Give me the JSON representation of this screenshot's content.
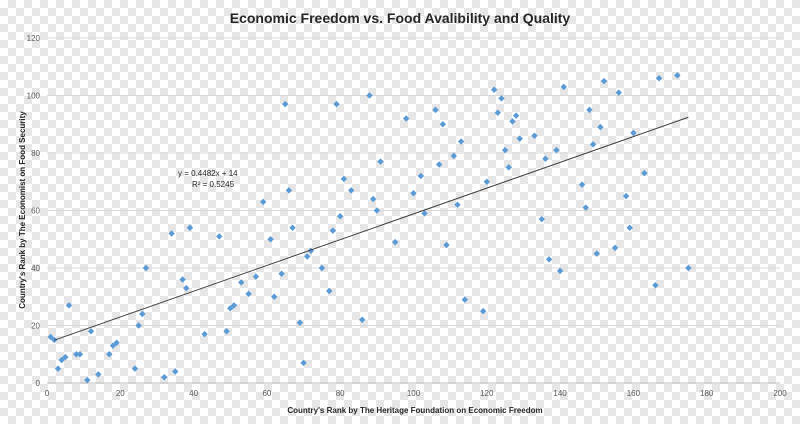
{
  "chart_data": {
    "type": "scatter",
    "title": "Economic Freedom vs. Food Avalibility and Quality",
    "xlabel": "Country's Rank by The Heritage Foundation on Economic Freedom",
    "ylabel": "Country's Rank by The Economist on Food Security",
    "xlim": [
      0,
      200
    ],
    "ylim": [
      0,
      120
    ],
    "x_ticks": [
      0,
      20,
      40,
      60,
      80,
      100,
      120,
      140,
      160,
      180,
      200
    ],
    "y_ticks": [
      0,
      20,
      40,
      60,
      80,
      100,
      120
    ],
    "grid": true,
    "point_color": "#5b9bd5",
    "trendline": {
      "slope": 0.4482,
      "intercept": 14,
      "x_range": [
        2,
        175
      ],
      "equation": "y = 0.4482x + 14",
      "r_squared": "R² = 0.5245",
      "color": "#404040"
    },
    "points": [
      [
        1,
        16
      ],
      [
        2,
        15
      ],
      [
        3,
        5
      ],
      [
        4,
        8
      ],
      [
        5,
        9
      ],
      [
        6,
        27
      ],
      [
        8,
        10
      ],
      [
        9,
        10
      ],
      [
        11,
        1
      ],
      [
        12,
        18
      ],
      [
        14,
        3
      ],
      [
        17,
        10
      ],
      [
        18,
        13
      ],
      [
        19,
        14
      ],
      [
        24,
        5
      ],
      [
        25,
        20
      ],
      [
        26,
        24
      ],
      [
        27,
        40
      ],
      [
        32,
        2
      ],
      [
        34,
        52
      ],
      [
        35,
        4
      ],
      [
        37,
        36
      ],
      [
        38,
        33
      ],
      [
        39,
        54
      ],
      [
        43,
        17
      ],
      [
        47,
        51
      ],
      [
        49,
        18
      ],
      [
        50,
        26
      ],
      [
        51,
        27
      ],
      [
        53,
        35
      ],
      [
        55,
        31
      ],
      [
        57,
        37
      ],
      [
        59,
        63
      ],
      [
        61,
        50
      ],
      [
        62,
        30
      ],
      [
        64,
        38
      ],
      [
        65,
        97
      ],
      [
        66,
        67
      ],
      [
        67,
        54
      ],
      [
        69,
        21
      ],
      [
        70,
        7
      ],
      [
        71,
        44
      ],
      [
        72,
        46
      ],
      [
        75,
        40
      ],
      [
        77,
        32
      ],
      [
        78,
        53
      ],
      [
        79,
        97
      ],
      [
        80,
        58
      ],
      [
        81,
        71
      ],
      [
        83,
        67
      ],
      [
        86,
        22
      ],
      [
        88,
        100
      ],
      [
        89,
        64
      ],
      [
        90,
        60
      ],
      [
        91,
        77
      ],
      [
        95,
        49
      ],
      [
        98,
        92
      ],
      [
        100,
        66
      ],
      [
        102,
        72
      ],
      [
        103,
        59
      ],
      [
        106,
        95
      ],
      [
        107,
        76
      ],
      [
        108,
        90
      ],
      [
        109,
        48
      ],
      [
        111,
        79
      ],
      [
        112,
        62
      ],
      [
        113,
        84
      ],
      [
        114,
        29
      ],
      [
        119,
        25
      ],
      [
        120,
        70
      ],
      [
        122,
        102
      ],
      [
        123,
        94
      ],
      [
        124,
        99
      ],
      [
        125,
        81
      ],
      [
        126,
        75
      ],
      [
        127,
        91
      ],
      [
        128,
        93
      ],
      [
        129,
        85
      ],
      [
        133,
        86
      ],
      [
        135,
        57
      ],
      [
        136,
        78
      ],
      [
        137,
        43
      ],
      [
        139,
        81
      ],
      [
        140,
        39
      ],
      [
        141,
        103
      ],
      [
        146,
        69
      ],
      [
        147,
        61
      ],
      [
        148,
        95
      ],
      [
        149,
        83
      ],
      [
        150,
        45
      ],
      [
        151,
        89
      ],
      [
        152,
        105
      ],
      [
        155,
        47
      ],
      [
        156,
        101
      ],
      [
        158,
        65
      ],
      [
        159,
        54
      ],
      [
        160,
        87
      ],
      [
        163,
        73
      ],
      [
        166,
        34
      ],
      [
        167,
        106
      ],
      [
        172,
        107
      ],
      [
        175,
        40
      ]
    ]
  }
}
